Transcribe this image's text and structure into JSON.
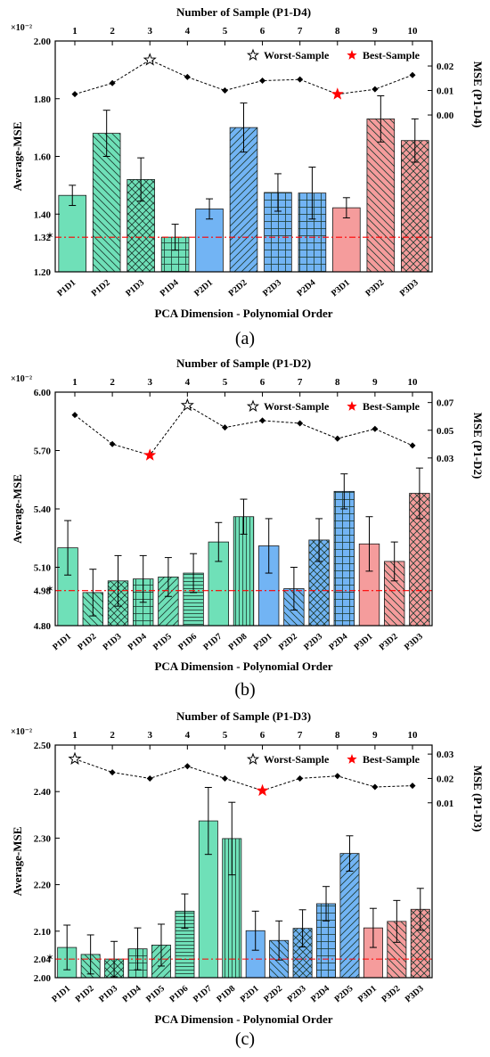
{
  "colors": {
    "P1": "#6fe0b8",
    "P2": "#72b4f4",
    "P3": "#f59c9c",
    "ref_line": "#ff0000",
    "best_star": "#ff0000",
    "dash_line": "#000000"
  },
  "legend": {
    "worst": "Worst-Sample",
    "best": "Best-Sample"
  },
  "chart_data": [
    {
      "type": "bar",
      "panel_label": "(a)",
      "xlabel": "PCA Dimension - Polynomial Order",
      "ylabel": "Average-MSE",
      "y_exponent": "×10⁻²",
      "ylim": [
        1.2,
        2.0
      ],
      "yticks": [
        "1.20",
        "1.40",
        "1.60",
        "1.80",
        "2.00"
      ],
      "ref_value": 1.32,
      "ref_label": "1.32",
      "categories": [
        "P1D1",
        "P1D2",
        "P1D3",
        "P1D4",
        "P2D1",
        "P2D2",
        "P2D3",
        "P2D4",
        "P3D1",
        "P3D2",
        "P3D3"
      ],
      "values": [
        1.465,
        1.68,
        1.52,
        1.32,
        1.418,
        1.7,
        1.475,
        1.473,
        1.422,
        1.73,
        1.655
      ],
      "errors": [
        0.035,
        0.08,
        0.075,
        0.045,
        0.035,
        0.085,
        0.065,
        0.09,
        0.035,
        0.08,
        0.075
      ],
      "groups": [
        "P1",
        "P1",
        "P1",
        "P1",
        "P2",
        "P2",
        "P2",
        "P2",
        "P3",
        "P3",
        "P3"
      ],
      "hatches": [
        "none",
        "diag-back",
        "cross-diag",
        "grid",
        "none",
        "diag-fwd",
        "grid",
        "grid",
        "none",
        "diag-back",
        "cross-diag"
      ],
      "top_axis_label": "Number of Sample (P1-D4)",
      "top_ticks": [
        "1",
        "2",
        "3",
        "4",
        "5",
        "6",
        "7",
        "8",
        "9",
        "10"
      ],
      "right_label": "MSE (P1-D4)",
      "right_ticks": [
        "0.00",
        "0.01",
        "0.02"
      ],
      "right_tick_values": [
        0.0,
        0.01,
        0.02
      ],
      "right_lim": [
        -0.064,
        0.0302
      ],
      "samples": [
        0.0085,
        0.013,
        0.0225,
        0.0155,
        0.01,
        0.014,
        0.0145,
        0.0085,
        0.0105,
        0.0163
      ],
      "worst_index": 2,
      "best_index": 7
    },
    {
      "type": "bar",
      "panel_label": "(b)",
      "xlabel": "PCA Dimension - Polynomial Order",
      "ylabel": "Average-MSE",
      "y_exponent": "×10⁻²",
      "ylim": [
        4.8,
        6.0
      ],
      "yticks": [
        "4.80",
        "5.10",
        "5.40",
        "5.70",
        "6.00"
      ],
      "ref_value": 4.98,
      "ref_label": "4.98",
      "categories": [
        "P1D1",
        "P1D2",
        "P1D3",
        "P1D4",
        "P1D5",
        "P1D6",
        "P1D7",
        "P1D8",
        "P2D1",
        "P2D2",
        "P2D3",
        "P2D4",
        "P3D1",
        "P3D2",
        "P3D3"
      ],
      "values": [
        5.2,
        4.97,
        5.03,
        5.04,
        5.05,
        5.07,
        5.23,
        5.36,
        5.21,
        4.99,
        5.24,
        5.49,
        5.22,
        5.13,
        5.48
      ],
      "errors": [
        0.14,
        0.12,
        0.13,
        0.12,
        0.1,
        0.1,
        0.1,
        0.09,
        0.14,
        0.11,
        0.11,
        0.09,
        0.14,
        0.1,
        0.13
      ],
      "groups": [
        "P1",
        "P1",
        "P1",
        "P1",
        "P1",
        "P1",
        "P1",
        "P1",
        "P2",
        "P2",
        "P2",
        "P2",
        "P3",
        "P3",
        "P3"
      ],
      "hatches": [
        "none",
        "diag-back",
        "cross-diag",
        "grid",
        "diag-fwd",
        "horiz",
        "none",
        "vert",
        "none",
        "diag-back",
        "cross-diag",
        "grid",
        "none",
        "diag-back",
        "cross-diag"
      ],
      "top_axis_label": "Number of Sample (P1-D2)",
      "top_ticks": [
        "1",
        "2",
        "3",
        "4",
        "5",
        "6",
        "7",
        "8",
        "9",
        "10"
      ],
      "right_label": "MSE (P1-D2)",
      "right_ticks": [
        "0.03",
        "0.05",
        "0.07"
      ],
      "right_tick_values": [
        0.03,
        0.05,
        0.07
      ],
      "right_lim": [
        -0.091,
        0.0775
      ],
      "samples": [
        0.061,
        0.04,
        0.032,
        0.068,
        0.052,
        0.057,
        0.055,
        0.044,
        0.051,
        0.039
      ],
      "worst_index": 3,
      "best_index": 2
    },
    {
      "type": "bar",
      "panel_label": "(c)",
      "xlabel": "PCA Dimension - Polynomial Order",
      "ylabel": "Average-MSE",
      "y_exponent": "×10⁻²",
      "ylim": [
        2.0,
        2.5
      ],
      "yticks": [
        "2.00",
        "2.10",
        "2.20",
        "2.30",
        "2.40",
        "2.50"
      ],
      "ref_value": 2.04,
      "ref_label": "2.04",
      "categories": [
        "P1D1",
        "P1D2",
        "P1D3",
        "P1D4",
        "P1D5",
        "P1D6",
        "P1D7",
        "P1D8",
        "P2D1",
        "P2D2",
        "P2D3",
        "P2D4",
        "P2D5",
        "P3D1",
        "P3D2",
        "P3D3"
      ],
      "values": [
        2.065,
        2.05,
        2.04,
        2.062,
        2.07,
        2.143,
        2.337,
        2.299,
        2.101,
        2.08,
        2.106,
        2.159,
        2.267,
        2.107,
        2.121,
        2.147
      ],
      "errors": [
        0.048,
        0.042,
        0.038,
        0.045,
        0.045,
        0.037,
        0.072,
        0.078,
        0.042,
        0.042,
        0.04,
        0.037,
        0.038,
        0.042,
        0.045,
        0.045
      ],
      "groups": [
        "P1",
        "P1",
        "P1",
        "P1",
        "P1",
        "P1",
        "P1",
        "P1",
        "P2",
        "P2",
        "P2",
        "P2",
        "P2",
        "P3",
        "P3",
        "P3"
      ],
      "hatches": [
        "none",
        "diag-back",
        "cross-diag",
        "grid",
        "diag-fwd",
        "horiz",
        "none",
        "vert",
        "none",
        "diag-back",
        "cross-diag",
        "grid",
        "diag-fwd",
        "none",
        "diag-back",
        "cross-diag"
      ],
      "top_axis_label": "Number of Sample (P1-D3)",
      "top_ticks": [
        "1",
        "2",
        "3",
        "4",
        "5",
        "6",
        "7",
        "8",
        "9",
        "10"
      ],
      "right_label": "MSE (P1-D3)",
      "right_ticks": [
        "0.01",
        "0.02",
        "0.03"
      ],
      "right_tick_values": [
        0.01,
        0.02,
        0.03
      ],
      "right_lim": [
        -0.0618,
        0.0337
      ],
      "samples": [
        0.028,
        0.0225,
        0.02,
        0.025,
        0.02,
        0.015,
        0.02,
        0.021,
        0.0165,
        0.017
      ],
      "worst_index": 0,
      "best_index": 5
    }
  ]
}
